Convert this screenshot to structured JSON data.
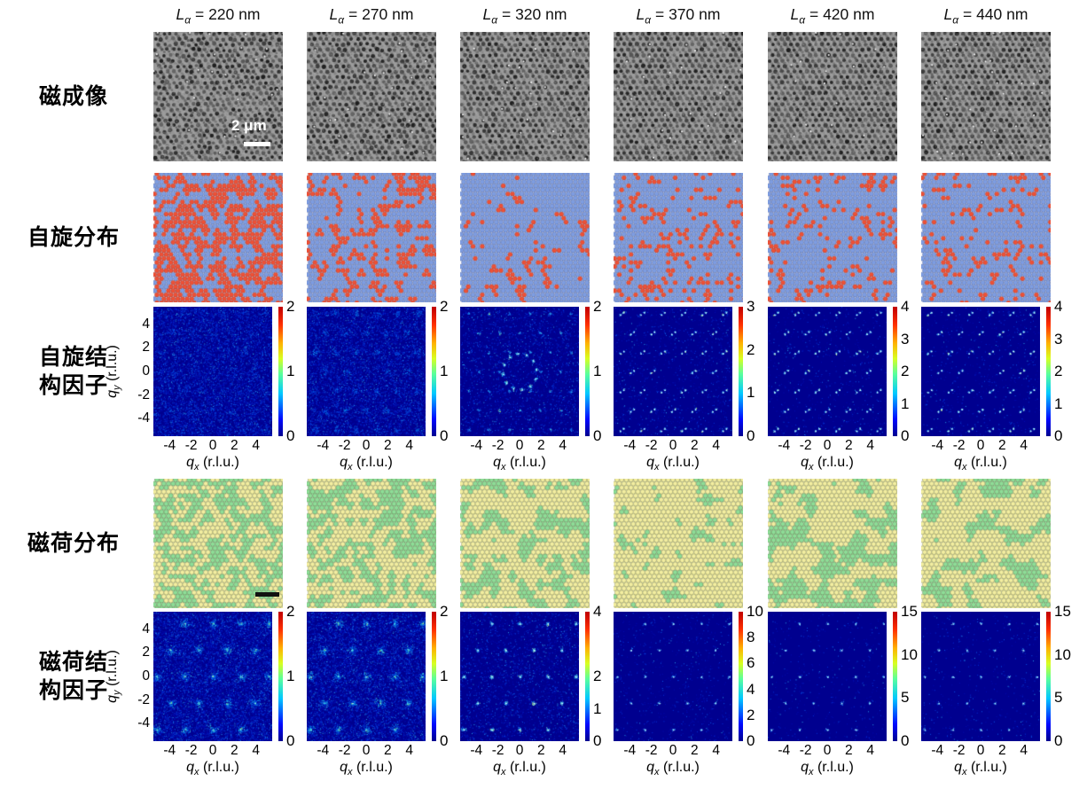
{
  "columns": [
    {
      "sym": "L",
      "sub": "α",
      "rest": " = 220 nm",
      "value": "220"
    },
    {
      "sym": "L",
      "sub": "α",
      "rest": " = 270 nm",
      "value": "270"
    },
    {
      "sym": "L",
      "sub": "α",
      "rest": " = 320 nm",
      "value": "320"
    },
    {
      "sym": "L",
      "sub": "α",
      "rest": " = 370 nm",
      "value": "370"
    },
    {
      "sym": "L",
      "sub": "α",
      "rest": " = 420 nm",
      "value": "420"
    },
    {
      "sym": "L",
      "sub": "α",
      "rest": " = 440 nm",
      "value": "440"
    }
  ],
  "rows": [
    {
      "id": "magnetic-imaging",
      "line1": "磁成像",
      "line2": ""
    },
    {
      "id": "spin-distribution",
      "line1": "自旋分布",
      "line2": ""
    },
    {
      "id": "spin-structure-factor",
      "line1": "自旋结",
      "line2": "构因子"
    },
    {
      "id": "charge-distribution",
      "line1": "磁荷分布",
      "line2": ""
    },
    {
      "id": "charge-structure-factor",
      "line1": "磁荷结",
      "line2": "构因子"
    }
  ],
  "axis": {
    "x_sym": "q",
    "x_sub": "x",
    "x_rest": " (r.l.u.)",
    "y_sym": "q",
    "y_sub": "y",
    "y_rest": " (r.l.u.)",
    "x_ticks": [
      "-4",
      "-2",
      "0",
      "2",
      "4"
    ],
    "y_ticks": [
      "4",
      "2",
      "0",
      "-2",
      "-4"
    ],
    "q_range": [
      -5.5,
      5.5
    ]
  },
  "scale_bar": {
    "text": "2 μm"
  },
  "colorbars": {
    "spin_sf": [
      {
        "max": 2,
        "ticks": [
          0,
          1,
          2
        ]
      },
      {
        "max": 2,
        "ticks": [
          0,
          1,
          2
        ]
      },
      {
        "max": 2,
        "ticks": [
          0,
          1,
          2
        ]
      },
      {
        "max": 3,
        "ticks": [
          0,
          1,
          2,
          3
        ]
      },
      {
        "max": 4,
        "ticks": [
          0,
          1,
          2,
          3,
          4
        ]
      },
      {
        "max": 4,
        "ticks": [
          0,
          1,
          2,
          3,
          4
        ]
      }
    ],
    "charge_sf": [
      {
        "max": 2,
        "ticks": [
          0,
          1,
          2
        ]
      },
      {
        "max": 2,
        "ticks": [
          0,
          1,
          2
        ]
      },
      {
        "max": 4,
        "ticks": [
          0,
          1,
          2,
          4
        ]
      },
      {
        "max": 10,
        "ticks": [
          0,
          2,
          4,
          6,
          8,
          10
        ]
      },
      {
        "max": 15,
        "ticks": [
          0,
          5,
          10,
          15
        ]
      },
      {
        "max": 15,
        "ticks": [
          0,
          5,
          10,
          15
        ]
      }
    ]
  },
  "colors": {
    "spin_red": "#ee5136",
    "spin_blue": "#7e9de1",
    "charge_green": "#8edd98",
    "charge_yellow": "#f3eea1",
    "sf_background": "#00008f",
    "imaging_gray": "#9c9c9c"
  },
  "render": {
    "imaging": [
      {
        "disorder": 1.0
      },
      {
        "disorder": 0.8
      },
      {
        "disorder": 0.6
      },
      {
        "disorder": 0.45
      },
      {
        "disorder": 0.35
      },
      {
        "disorder": 0.3
      }
    ],
    "spin": [
      {
        "mode": "fill",
        "frac": 0.56,
        "scale": 6.5
      },
      {
        "mode": "fill",
        "frac": 0.4,
        "scale": 7.5
      },
      {
        "mode": "fill",
        "frac": 0.28,
        "scale": 8
      },
      {
        "mode": "contour",
        "band": 0.045,
        "scale": 8
      },
      {
        "mode": "contour",
        "band": 0.04,
        "scale": 9
      },
      {
        "mode": "contour",
        "band": 0.038,
        "scale": 10
      }
    ],
    "charge": [
      {
        "frac": 0.5,
        "scale": 6.5
      },
      {
        "frac": 0.47,
        "scale": 8
      },
      {
        "frac": 0.44,
        "scale": 10
      },
      {
        "frac": 0.34,
        "scale": 12
      },
      {
        "frac": 0.42,
        "scale": 13
      },
      {
        "frac": 0.38,
        "scale": 14
      }
    ],
    "spin_sf": [
      {
        "diffuse": 0.95,
        "spots": "haze"
      },
      {
        "diffuse": 0.8,
        "spots": "faint"
      },
      {
        "diffuse": 0.3,
        "spots": "ring"
      },
      {
        "diffuse": 0.12,
        "spots": "sharp"
      },
      {
        "diffuse": 0.07,
        "spots": "sharp"
      },
      {
        "diffuse": 0.07,
        "spots": "sharp"
      }
    ],
    "charge_sf": [
      {
        "diffuse": 1.0,
        "spots": "fuzzy"
      },
      {
        "diffuse": 0.9,
        "spots": "fuzzy"
      },
      {
        "diffuse": 0.3,
        "spots": "medium"
      },
      {
        "diffuse": 0.08,
        "spots": "tiny"
      },
      {
        "diffuse": 0.05,
        "spots": "tiny"
      },
      {
        "diffuse": 0.05,
        "spots": "tiny"
      }
    ]
  }
}
